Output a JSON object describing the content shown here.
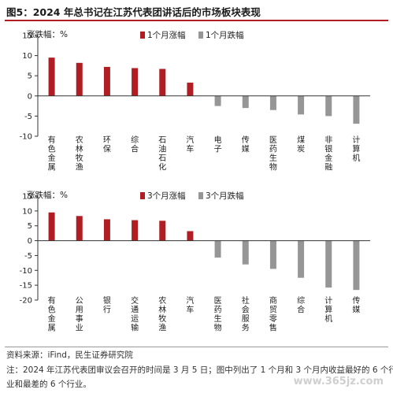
{
  "figure": {
    "title": "图5：2024 年总书记在江苏代表团讲话后的市场板块表现",
    "source": "资料来源：iFind，民生证券研究院",
    "note_line1": "注：2024 年江苏代表团审议会召开的时间是 3 月 5 日；图中列出了 1 个月和 3 个月内收益最好的 6 个行",
    "note_line2": "业和最差的 6 个行业。",
    "watermark": "www.365jz.com"
  },
  "colors": {
    "up": "#b01e23",
    "down": "#969696",
    "axis": "#333333",
    "title_rule": "#b01e23"
  },
  "chart_data": [
    {
      "type": "bar",
      "ylabel": "涨跌幅：%",
      "ylim": [
        -10,
        15
      ],
      "yticks": [
        -10,
        -5,
        0,
        5,
        10,
        15
      ],
      "grid": false,
      "legend_position": "top-center",
      "series": [
        {
          "name": "1个月涨幅",
          "color": "#b01e23"
        },
        {
          "name": "1个月跌幅",
          "color": "#969696"
        }
      ],
      "categories": [
        "有色金属",
        "农林牧渔",
        "环保",
        "综合",
        "石油石化",
        "汽车",
        "电子",
        "传媒",
        "医药生物",
        "煤炭",
        "非银金融",
        "计算机"
      ],
      "values": [
        9.5,
        8.2,
        7.2,
        6.9,
        6.7,
        3.3,
        -2.5,
        -3.0,
        -3.5,
        -4.6,
        -5.0,
        -6.9
      ],
      "series_index": [
        0,
        0,
        0,
        0,
        0,
        0,
        1,
        1,
        1,
        1,
        1,
        1
      ]
    },
    {
      "type": "bar",
      "ylabel": "涨跌幅：%",
      "ylim": [
        -20,
        15
      ],
      "yticks": [
        -20,
        -15,
        -10,
        -5,
        0,
        5,
        10,
        15
      ],
      "grid": false,
      "legend_position": "top-center",
      "series": [
        {
          "name": "3个月涨幅",
          "color": "#b01e23"
        },
        {
          "name": "3个月跌幅",
          "color": "#969696"
        }
      ],
      "categories": [
        "有色金属",
        "公用事业",
        "银行",
        "交通运输",
        "农林牧渔",
        "汽车",
        "医药生物",
        "社会服务",
        "商贸零售",
        "综合",
        "计算机",
        "传媒"
      ],
      "values": [
        9.5,
        8.3,
        7.2,
        6.9,
        6.7,
        3.2,
        -5.7,
        -8.0,
        -9.5,
        -12.5,
        -15.8,
        -16.6
      ],
      "series_index": [
        0,
        0,
        0,
        0,
        0,
        0,
        1,
        1,
        1,
        1,
        1,
        1
      ]
    }
  ]
}
